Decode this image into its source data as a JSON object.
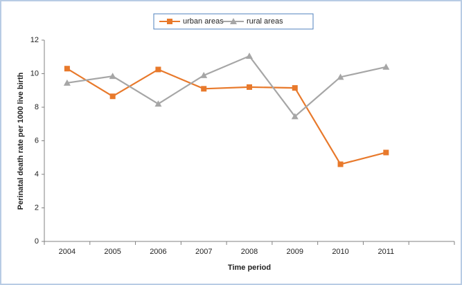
{
  "chart_data": {
    "type": "line",
    "x_label": "Time period",
    "y_label": "Perinatal  death rate per 1000 live birth",
    "categories": [
      "2004",
      "2005",
      "2006",
      "2007",
      "2008",
      "2009",
      "2010",
      "2011",
      null
    ],
    "series": [
      {
        "name": "urban areas",
        "color": "#e8792b",
        "marker": "square",
        "values": [
          10.3,
          8.65,
          10.25,
          9.1,
          9.2,
          9.15,
          4.6,
          5.3,
          null
        ]
      },
      {
        "name": "rural areas",
        "color": "#a6a6a6",
        "marker": "triangle",
        "values": [
          9.45,
          9.85,
          8.2,
          9.9,
          11.05,
          7.45,
          9.8,
          10.4,
          null
        ]
      }
    ],
    "ylim": [
      0,
      12
    ],
    "yticks": [
      0,
      2,
      4,
      6,
      8,
      10,
      12
    ],
    "grid": false
  }
}
